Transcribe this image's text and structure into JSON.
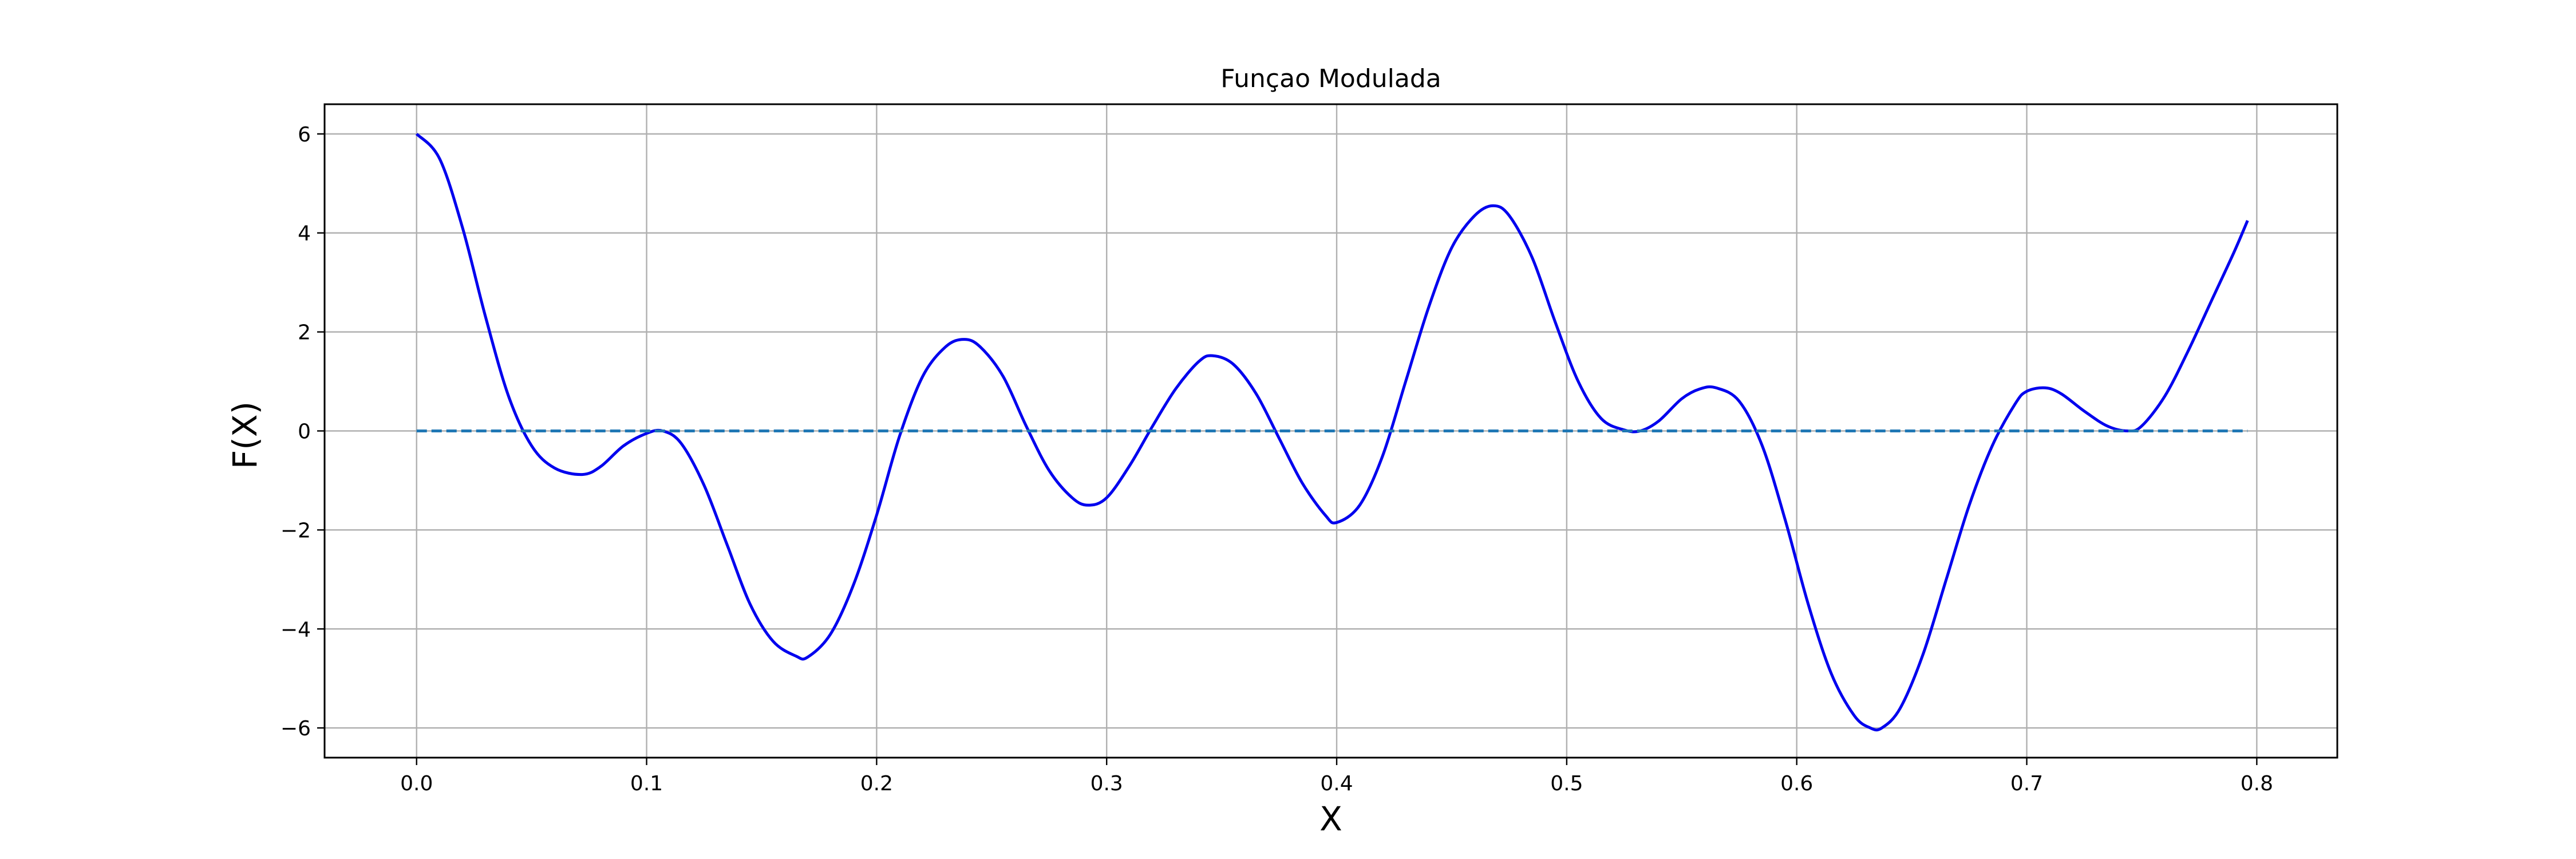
{
  "chart_data": {
    "type": "line",
    "title": "Funçao Modulada",
    "xlabel": "X",
    "ylabel": "F(X)",
    "xlim": [
      -0.04,
      0.835
    ],
    "ylim": [
      -6.6,
      6.6
    ],
    "x_ticks": [
      0.0,
      0.1,
      0.2,
      0.3,
      0.4,
      0.5,
      0.6,
      0.7,
      0.8
    ],
    "x_tick_labels": [
      "0.0",
      "0.1",
      "0.2",
      "0.3",
      "0.4",
      "0.5",
      "0.6",
      "0.7",
      "0.8"
    ],
    "y_ticks": [
      -6,
      -4,
      -2,
      0,
      2,
      4,
      6
    ],
    "y_tick_labels": [
      "−6",
      "−4",
      "−2",
      "0",
      "2",
      "4",
      "6"
    ],
    "grid": true,
    "colors": {
      "signal": "#0000ee",
      "baseline": "#1f77b4",
      "grid": "#b0b0b0"
    },
    "series": [
      {
        "style": "solid",
        "x": [
          0.0,
          0.01,
          0.02,
          0.03,
          0.04,
          0.05,
          0.06,
          0.072,
          0.08,
          0.09,
          0.1,
          0.107,
          0.115,
          0.125,
          0.135,
          0.145,
          0.155,
          0.165,
          0.17,
          0.18,
          0.19,
          0.2,
          0.21,
          0.22,
          0.23,
          0.238,
          0.245,
          0.255,
          0.265,
          0.275,
          0.285,
          0.292,
          0.3,
          0.31,
          0.32,
          0.33,
          0.34,
          0.346,
          0.355,
          0.365,
          0.375,
          0.385,
          0.395,
          0.4,
          0.41,
          0.42,
          0.43,
          0.44,
          0.45,
          0.46,
          0.468,
          0.475,
          0.485,
          0.495,
          0.505,
          0.515,
          0.525,
          0.532,
          0.54,
          0.55,
          0.558,
          0.565,
          0.575,
          0.585,
          0.595,
          0.605,
          0.615,
          0.625,
          0.632,
          0.637,
          0.645,
          0.655,
          0.665,
          0.675,
          0.685,
          0.695,
          0.7,
          0.708,
          0.715,
          0.725,
          0.735,
          0.744,
          0.75,
          0.76,
          0.77,
          0.78,
          0.79,
          0.796
        ],
        "y": [
          6.0,
          5.5,
          4.1,
          2.3,
          0.7,
          -0.3,
          -0.75,
          -0.88,
          -0.72,
          -0.3,
          -0.05,
          0.0,
          -0.25,
          -1.1,
          -2.3,
          -3.5,
          -4.25,
          -4.55,
          -4.57,
          -4.1,
          -3.1,
          -1.7,
          -0.1,
          1.1,
          1.7,
          1.85,
          1.7,
          1.1,
          0.1,
          -0.8,
          -1.35,
          -1.5,
          -1.35,
          -0.7,
          0.1,
          0.85,
          1.4,
          1.52,
          1.35,
          0.75,
          -0.15,
          -1.05,
          -1.7,
          -1.85,
          -1.5,
          -0.5,
          1.0,
          2.5,
          3.7,
          4.35,
          4.55,
          4.35,
          3.5,
          2.2,
          1.0,
          0.25,
          0.02,
          0.0,
          0.2,
          0.65,
          0.85,
          0.87,
          0.6,
          -0.3,
          -1.8,
          -3.5,
          -4.9,
          -5.75,
          -6.0,
          -6.0,
          -5.6,
          -4.5,
          -3.0,
          -1.5,
          -0.3,
          0.55,
          0.8,
          0.87,
          0.75,
          0.4,
          0.1,
          0.0,
          0.1,
          0.7,
          1.6,
          2.6,
          3.6,
          4.25
        ]
      },
      {
        "style": "dashed",
        "x": [
          0.0,
          0.796
        ],
        "y": [
          0,
          0
        ]
      }
    ]
  }
}
